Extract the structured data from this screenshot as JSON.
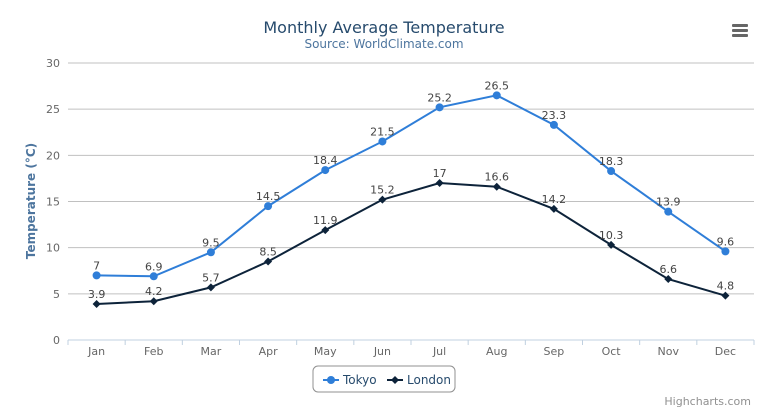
{
  "chart_data": {
    "type": "line",
    "title": "Monthly Average Temperature",
    "subtitle": "Source: WorldClimate.com",
    "xlabel": "",
    "ylabel": "Temperature (°C)",
    "categories": [
      "Jan",
      "Feb",
      "Mar",
      "Apr",
      "May",
      "Jun",
      "Jul",
      "Aug",
      "Sep",
      "Oct",
      "Nov",
      "Dec"
    ],
    "ylim": [
      0,
      30
    ],
    "yticks": [
      0,
      5,
      10,
      15,
      20,
      25,
      30
    ],
    "grid": true,
    "legend": "bottom-center",
    "series": [
      {
        "name": "Tokyo",
        "color": "#2f7ed8",
        "marker": "circle",
        "values": [
          7,
          6.9,
          9.5,
          14.5,
          18.4,
          21.5,
          25.2,
          26.5,
          23.3,
          18.3,
          13.9,
          9.6
        ]
      },
      {
        "name": "London",
        "color": "#0d233a",
        "marker": "diamond",
        "values": [
          3.9,
          4.2,
          5.7,
          8.5,
          11.9,
          15.2,
          17,
          16.6,
          14.2,
          10.3,
          6.6,
          4.8
        ]
      }
    ]
  },
  "credits": "Highcharts.com",
  "menu_icon": "hamburger-menu-icon"
}
